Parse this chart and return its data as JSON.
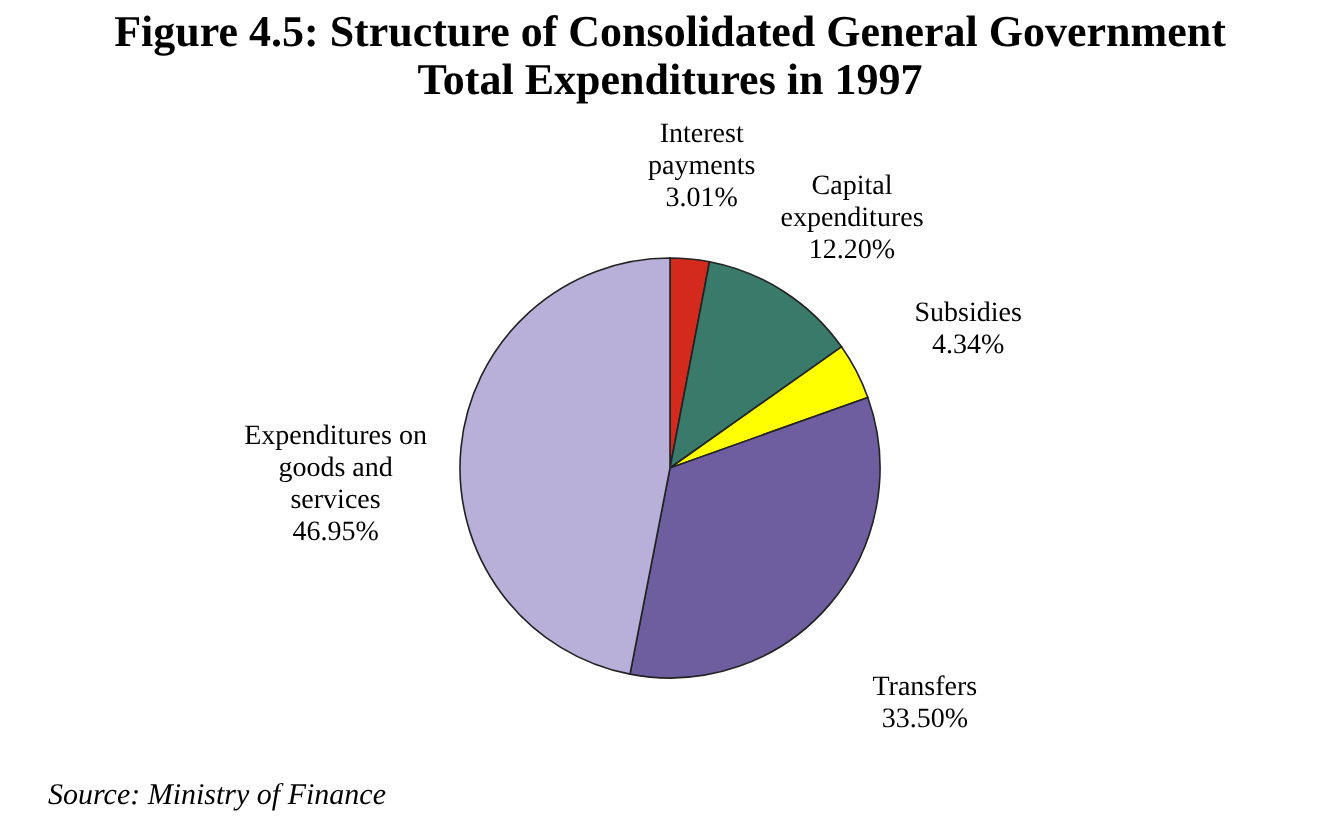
{
  "chart_data": {
    "type": "pie",
    "title": "Figure 4.5: Structure of Consolidated General Government Total Expenditures in 1997",
    "categories": [
      "Interest payments",
      "Capital expenditures",
      "Subsidies",
      "Transfers",
      "Expenditures on goods and services"
    ],
    "values": [
      3.01,
      12.2,
      4.34,
      33.5,
      46.95
    ],
    "colors": [
      "#d42a1e",
      "#3a7a6a",
      "#ffff00",
      "#6e5ea0",
      "#b8b0d8"
    ],
    "value_labels": [
      "3.01%",
      "12.20%",
      "4.34%",
      "33.50%",
      "46.95%"
    ],
    "annotations": [
      "Source: Ministry of Finance"
    ],
    "legend": false
  }
}
